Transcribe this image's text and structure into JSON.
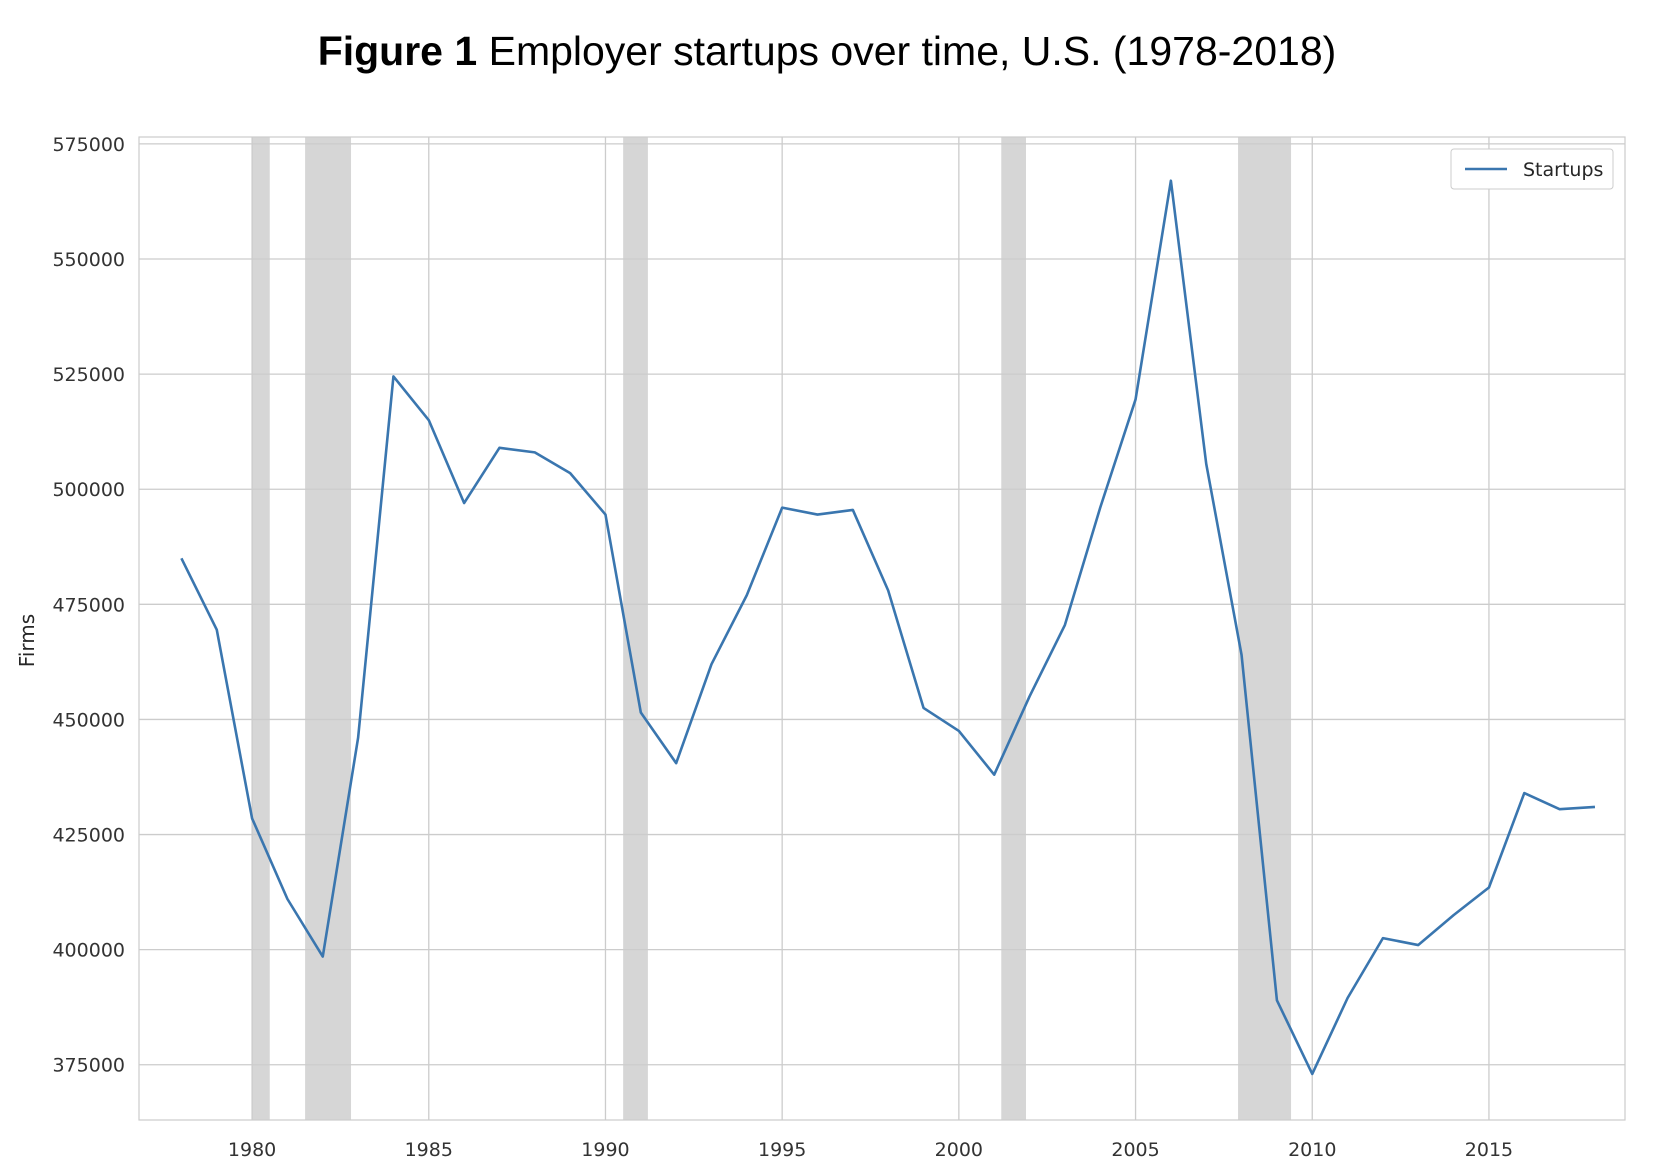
{
  "title": {
    "figure_label": "Figure 1",
    "text": "Employer startups over time, U.S. (1978-2018)"
  },
  "colors": {
    "line": "#3a76af",
    "grid": "#cccccc",
    "recession_band": "#d6d6d6",
    "axes_border": "#cccccc"
  },
  "chart_data": {
    "type": "line",
    "title": "Figure 1 Employer startups over time, U.S. (1978-2018)",
    "xlabel": "",
    "ylabel": "Firms",
    "xlim": [
      1976.8,
      2018.85
    ],
    "ylim": [
      363000,
      576500
    ],
    "x_ticks": [
      1980,
      1985,
      1990,
      1995,
      2000,
      2005,
      2010,
      2015
    ],
    "y_ticks": [
      375000,
      400000,
      425000,
      450000,
      475000,
      500000,
      525000,
      550000,
      575000
    ],
    "grid": true,
    "legend": {
      "position": "top-right",
      "entries": [
        "Startups"
      ]
    },
    "recession_bands": [
      [
        1980.0,
        1980.5
      ],
      [
        1981.5,
        1982.8
      ],
      [
        1990.5,
        1991.2
      ],
      [
        2001.2,
        2001.9
      ],
      [
        2007.9,
        2009.4
      ]
    ],
    "series": [
      {
        "name": "Startups",
        "x": [
          1978,
          1979,
          1980,
          1981,
          1982,
          1983,
          1984,
          1985,
          1986,
          1987,
          1988,
          1989,
          1990,
          1991,
          1992,
          1993,
          1994,
          1995,
          1996,
          1997,
          1998,
          1999,
          2000,
          2001,
          2002,
          2003,
          2004,
          2005,
          2006,
          2007,
          2008,
          2009,
          2010,
          2011,
          2012,
          2013,
          2014,
          2015,
          2016,
          2017,
          2018
        ],
        "values": [
          485000,
          469500,
          428500,
          411000,
          398500,
          446000,
          524500,
          515000,
          497000,
          509000,
          508000,
          503500,
          494500,
          451500,
          440500,
          462000,
          477000,
          496000,
          494500,
          495500,
          478000,
          452500,
          447500,
          438000,
          455000,
          470500,
          496000,
          519500,
          567000,
          505500,
          464000,
          389000,
          373000,
          389500,
          402500,
          401000,
          407500,
          413500,
          434000,
          430500,
          431000
        ]
      }
    ]
  }
}
